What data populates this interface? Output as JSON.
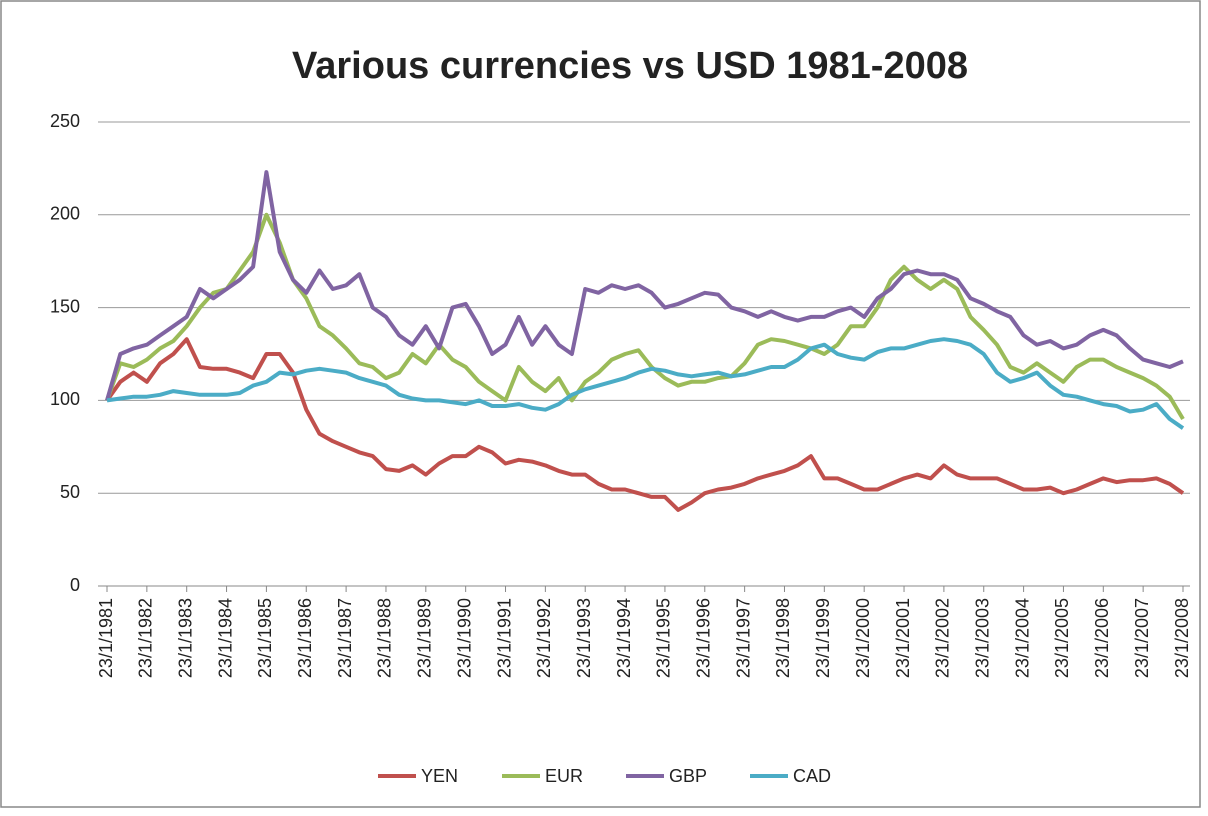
{
  "chart_data": {
    "type": "line",
    "title": "Various currencies vs USD 1981-2008",
    "categories": [
      "23/1/1981",
      null,
      null,
      "23/1/1982",
      null,
      null,
      "23/1/1983",
      null,
      null,
      "23/1/1984",
      null,
      null,
      "23/1/1985",
      null,
      null,
      "23/1/1986",
      null,
      null,
      "23/1/1987",
      null,
      null,
      "23/1/1988",
      null,
      null,
      "23/1/1989",
      null,
      null,
      "23/1/1990",
      null,
      null,
      "23/1/1991",
      null,
      null,
      "23/1/1992",
      null,
      null,
      "23/1/1993",
      null,
      null,
      "23/1/1994",
      null,
      null,
      "23/1/1995",
      null,
      null,
      "23/1/1996",
      null,
      null,
      "23/1/1997",
      null,
      null,
      "23/1/1998",
      null,
      null,
      "23/1/1999",
      null,
      null,
      "23/1/2000",
      null,
      null,
      "23/1/2001",
      null,
      null,
      "23/1/2002",
      null,
      null,
      "23/1/2003",
      null,
      null,
      "23/1/2004",
      null,
      null,
      "23/1/2005",
      null,
      null,
      "23/1/2006",
      null,
      null,
      "23/1/2007",
      null,
      null,
      "23/1/2008"
    ],
    "series": [
      {
        "name": "YEN",
        "color": "#c0504d",
        "values": [
          100,
          110,
          115,
          110,
          120,
          125,
          133,
          118,
          117,
          117,
          115,
          112,
          125,
          125,
          115,
          95,
          82,
          78,
          75,
          72,
          70,
          63,
          62,
          65,
          60,
          66,
          70,
          70,
          75,
          72,
          66,
          68,
          67,
          65,
          62,
          60,
          60,
          55,
          52,
          52,
          50,
          48,
          48,
          41,
          45,
          50,
          52,
          53,
          55,
          58,
          60,
          62,
          65,
          70,
          58,
          58,
          55,
          52,
          52,
          55,
          58,
          60,
          58,
          65,
          60,
          58,
          58,
          58,
          55,
          52,
          52,
          53,
          50,
          52,
          55,
          58,
          56,
          57,
          57,
          58,
          55,
          50
        ]
      },
      {
        "name": "EUR",
        "color": "#9bbb59",
        "values": [
          100,
          120,
          118,
          122,
          128,
          132,
          140,
          150,
          158,
          160,
          170,
          180,
          200,
          185,
          165,
          155,
          140,
          135,
          128,
          120,
          118,
          112,
          115,
          125,
          120,
          130,
          122,
          118,
          110,
          105,
          100,
          118,
          110,
          105,
          112,
          100,
          110,
          115,
          122,
          125,
          127,
          118,
          112,
          108,
          110,
          110,
          112,
          113,
          120,
          130,
          133,
          132,
          130,
          128,
          125,
          130,
          140,
          140,
          150,
          165,
          172,
          165,
          160,
          165,
          160,
          145,
          138,
          130,
          118,
          115,
          120,
          115,
          110,
          118,
          122,
          122,
          118,
          115,
          112,
          108,
          102,
          90
        ]
      },
      {
        "name": "GBP",
        "color": "#8064a2",
        "values": [
          100,
          125,
          128,
          130,
          135,
          140,
          145,
          160,
          155,
          160,
          165,
          172,
          223,
          180,
          165,
          158,
          170,
          160,
          162,
          168,
          150,
          145,
          135,
          130,
          140,
          128,
          150,
          152,
          140,
          125,
          130,
          145,
          130,
          140,
          130,
          125,
          160,
          158,
          162,
          160,
          162,
          158,
          150,
          152,
          155,
          158,
          157,
          150,
          148,
          145,
          148,
          145,
          143,
          145,
          145,
          148,
          150,
          145,
          155,
          160,
          168,
          170,
          168,
          168,
          165,
          155,
          152,
          148,
          145,
          135,
          130,
          132,
          128,
          130,
          135,
          138,
          135,
          128,
          122,
          120,
          118,
          121
        ]
      },
      {
        "name": "CAD",
        "color": "#4bacc6",
        "values": [
          100,
          101,
          102,
          102,
          103,
          105,
          104,
          103,
          103,
          103,
          104,
          108,
          110,
          115,
          114,
          116,
          117,
          116,
          115,
          112,
          110,
          108,
          103,
          101,
          100,
          100,
          99,
          98,
          100,
          97,
          97,
          98,
          96,
          95,
          98,
          103,
          106,
          108,
          110,
          112,
          115,
          117,
          116,
          114,
          113,
          114,
          115,
          113,
          114,
          116,
          118,
          118,
          122,
          128,
          130,
          125,
          123,
          122,
          126,
          128,
          128,
          130,
          132,
          133,
          132,
          130,
          125,
          115,
          110,
          112,
          115,
          108,
          103,
          102,
          100,
          98,
          97,
          94,
          95,
          98,
          90,
          85
        ]
      }
    ],
    "ylim": [
      0,
      250
    ],
    "yticks": [
      0,
      50,
      100,
      150,
      200,
      250
    ],
    "grid": true,
    "legend": "bottom"
  }
}
